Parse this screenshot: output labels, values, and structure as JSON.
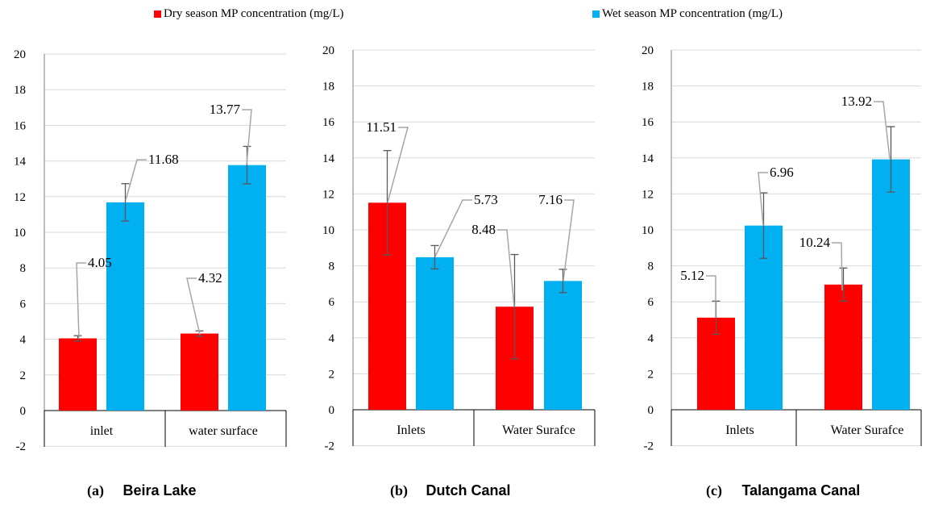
{
  "legend": {
    "dry": {
      "label": "Dry season MP concentration (mg/L)",
      "color": "#ff0000"
    },
    "wet": {
      "label": "Wet season MP concentration (mg/L)",
      "color": "#00b0f0"
    }
  },
  "chart_data": [
    {
      "type": "bar",
      "caption_letter": "(a)",
      "caption_name": "Beira Lake",
      "categories": [
        "inlet",
        "water surface"
      ],
      "ylim": [
        -2,
        20
      ],
      "yticks": [
        -2,
        0,
        2,
        4,
        6,
        8,
        10,
        12,
        14,
        16,
        18,
        20
      ],
      "grid": true,
      "series": [
        {
          "key": "dry",
          "values": [
            4.05,
            4.32
          ],
          "errors": [
            0.15,
            0.15
          ],
          "labels": [
            "4.05",
            "4.32"
          ]
        },
        {
          "key": "wet",
          "values": [
            11.68,
            13.77
          ],
          "errors": [
            1.05,
            1.05
          ],
          "labels": [
            "11.68",
            "13.77"
          ]
        }
      ]
    },
    {
      "type": "bar",
      "caption_letter": "(b)",
      "caption_name": "Dutch Canal",
      "categories": [
        "Inlets",
        "Water Surafce"
      ],
      "ylim": [
        -2,
        20
      ],
      "yticks": [
        -2,
        0,
        2,
        4,
        6,
        8,
        10,
        12,
        14,
        16,
        18,
        20
      ],
      "grid": true,
      "series": [
        {
          "key": "dry",
          "values": [
            11.51,
            5.73
          ],
          "errors": [
            2.9,
            2.9
          ],
          "labels": [
            "11.51",
            "5.73"
          ]
        },
        {
          "key": "wet",
          "values": [
            8.48,
            7.16
          ],
          "errors": [
            0.65,
            0.65
          ],
          "labels": [
            "8.48",
            "7.16"
          ]
        }
      ]
    },
    {
      "type": "bar",
      "caption_letter": "(c)",
      "caption_name": "Talangama Canal",
      "categories": [
        "Inlets",
        "Water Surafce"
      ],
      "ylim": [
        -2,
        20
      ],
      "yticks": [
        -2,
        0,
        2,
        4,
        6,
        8,
        10,
        12,
        14,
        16,
        18,
        20
      ],
      "grid": true,
      "series": [
        {
          "key": "dry",
          "values": [
            5.12,
            6.96
          ],
          "errors": [
            0.92,
            0.92
          ],
          "labels": [
            "5.12",
            "6.96"
          ]
        },
        {
          "key": "wet",
          "values": [
            10.24,
            13.92
          ],
          "errors": [
            1.82,
            1.82
          ],
          "labels": [
            "10.24",
            "13.92"
          ]
        }
      ]
    }
  ]
}
